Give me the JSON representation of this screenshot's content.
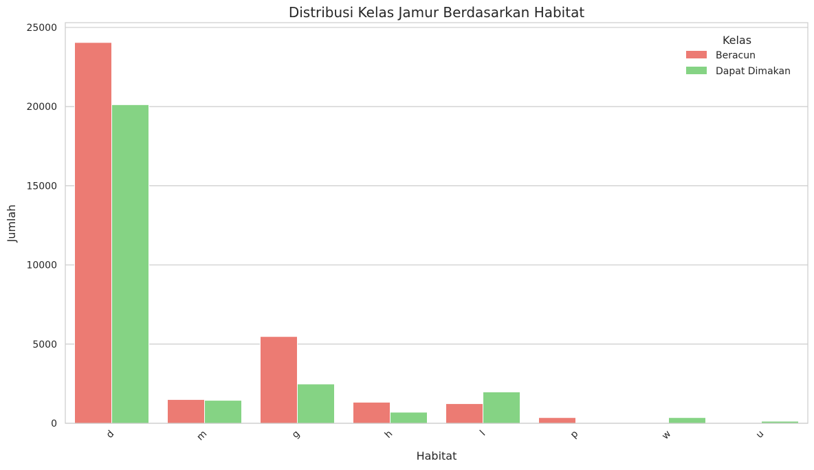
{
  "chart_data": {
    "type": "bar",
    "title": "Distribusi Kelas Jamur Berdasarkan Habitat",
    "xlabel": "Habitat",
    "ylabel": "Jumlah",
    "categories": [
      "d",
      "m",
      "g",
      "h",
      "l",
      "p",
      "w",
      "u"
    ],
    "ylim": [
      0,
      25300
    ],
    "yticks": [
      0,
      5000,
      10000,
      15000,
      20000,
      25000
    ],
    "grid": "horizontal",
    "legend": {
      "title": "Kelas",
      "placement": "top-right"
    },
    "series": [
      {
        "name": "Beracun",
        "color": "#ec7b73",
        "values": [
          24050,
          1500,
          5480,
          1330,
          1240,
          360,
          0,
          0
        ]
      },
      {
        "name": "Dapat Dimakan",
        "color": "#85d384",
        "values": [
          20120,
          1450,
          2480,
          700,
          1980,
          0,
          360,
          130
        ]
      }
    ]
  }
}
